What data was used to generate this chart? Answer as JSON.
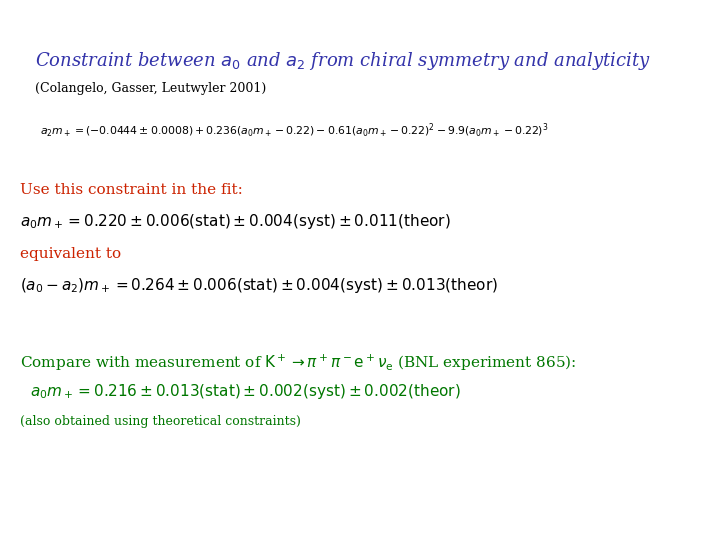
{
  "background_color": "#ffffff",
  "title": "Constraint between $a_0$ and $a_2$ from chiral symmetry and analyticity",
  "title_color": "#3333aa",
  "subtitle": "(Colangelo, Gasser, Leutwyler 2001)",
  "subtitle_color": "#000000",
  "formula": "$a_2 m_+ = (-0.0444 \\pm 0.0008) + 0.236(a_0 m_+ - 0.22) - 0.61(a_0 m_+ - 0.22)^2 - 9.9(a_0 m_+ - 0.22)^3$",
  "formula_color": "#000000",
  "label1": "Use this constraint in the fit:",
  "label1_color": "#cc2200",
  "line1": "$a_0 m_+ = 0.220 \\pm 0.006(\\mathrm{stat}) \\pm 0.004(\\mathrm{syst}) \\pm 0.011(\\mathrm{theor})$",
  "line1_color": "#000000",
  "label2": "equivalent to",
  "label2_color": "#cc2200",
  "line2": "$(a_0 - a_2)m_+ = 0.264 \\pm 0.006(\\mathrm{stat}) \\pm 0.004(\\mathrm{syst}) \\pm 0.013(\\mathrm{theor})$",
  "line2_color": "#000000",
  "label3": "Compare with measurement of $\\mathrm{K}^+ \\rightarrow \\pi^+\\pi^-\\mathrm{e}^+\\nu_\\mathrm{e}$ (BNL experiment 865):",
  "label3_color": "#007700",
  "line3": "$a_0 m_+ = 0.216 \\pm 0.013(\\mathrm{stat}) \\pm 0.002(\\mathrm{syst}) \\pm 0.002(\\mathrm{theor})$",
  "line3_color": "#007700",
  "footnote": "(also obtained using theoretical constraints)",
  "footnote_color": "#007700",
  "title_fontsize": 13,
  "subtitle_fontsize": 9,
  "formula_fontsize": 7.8,
  "label_fontsize": 11,
  "line_fontsize": 11,
  "label3_fontsize": 11,
  "footnote_fontsize": 9
}
